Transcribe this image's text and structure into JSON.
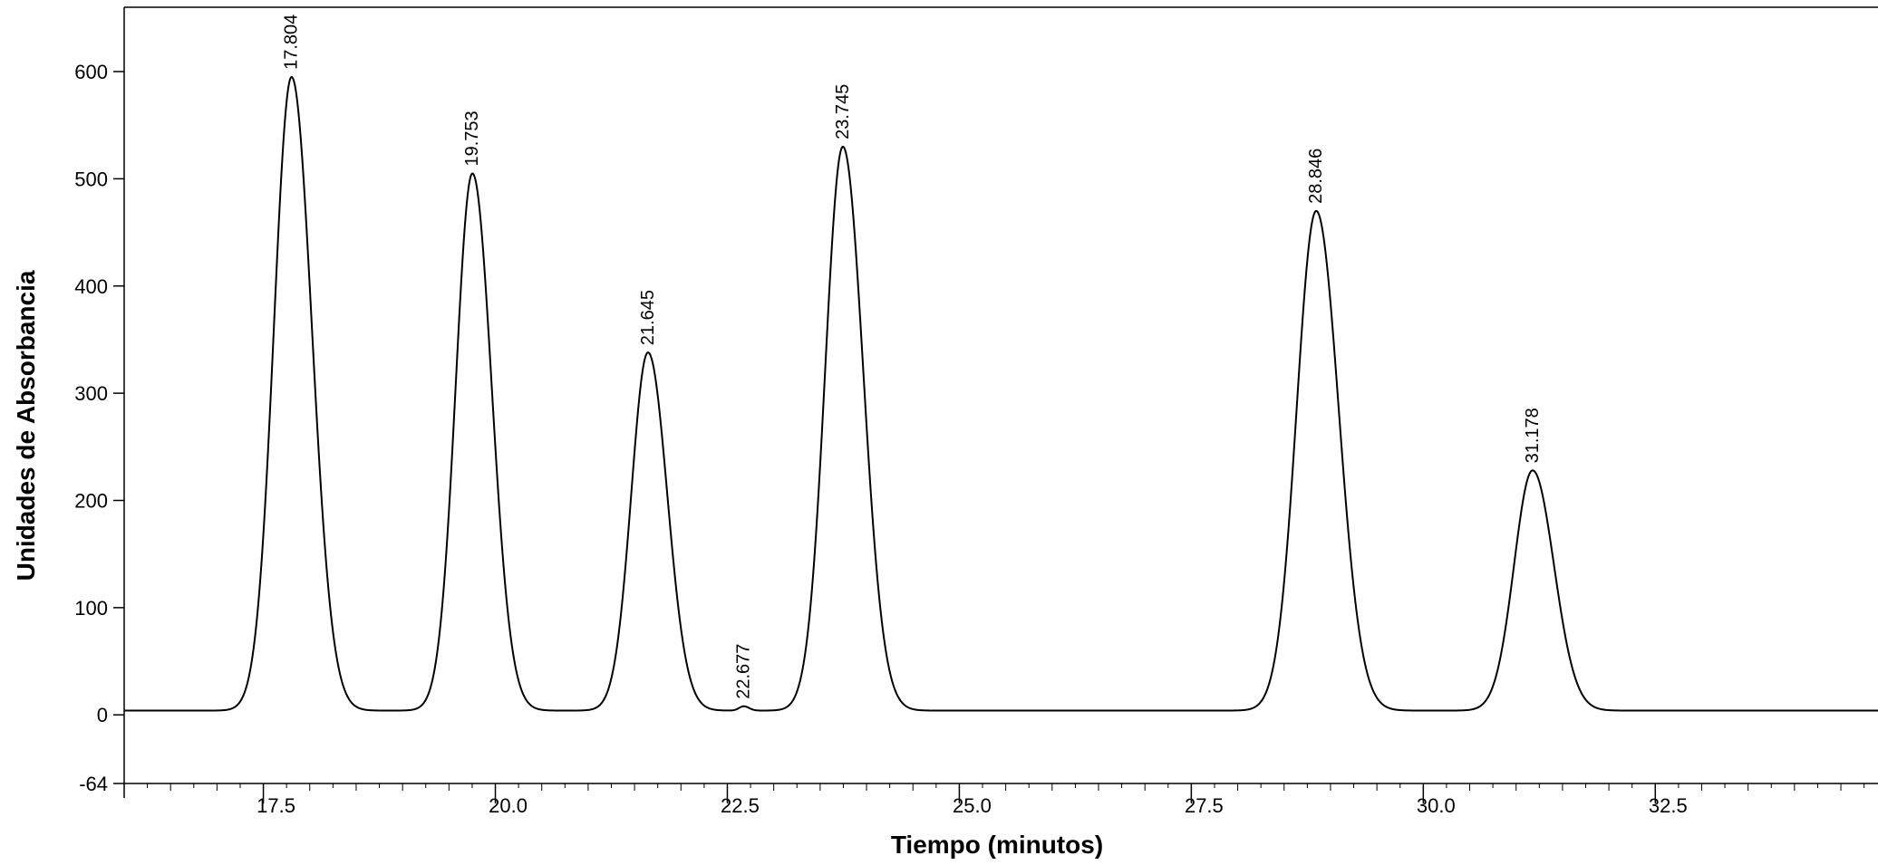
{
  "chart_data": {
    "type": "line",
    "title": "",
    "xlabel": "Tiempo (minutos)",
    "ylabel": "Unidades de Absorbancia",
    "xlim": [
      16.0,
      34.9
    ],
    "ylim": [
      -64,
      660
    ],
    "x_ticks": [
      17.5,
      20.0,
      22.5,
      25.0,
      27.5,
      30.0,
      32.5
    ],
    "x_tick_labels": [
      "17.5",
      "20.0",
      "22.5",
      "25.0",
      "27.5",
      "30.0",
      "32.5"
    ],
    "y_ticks": [
      600,
      500,
      400,
      300,
      200,
      100,
      0,
      -64
    ],
    "y_tick_labels": [
      "600",
      "500",
      "400",
      "300",
      "200",
      "100",
      "0",
      "-64"
    ],
    "grid": false,
    "legend": "none",
    "line_color": "#000000",
    "baseline": 4,
    "peaks": [
      {
        "label": "17.804",
        "x": 17.804,
        "y": 595,
        "width": 0.19
      },
      {
        "label": "19.753",
        "x": 19.753,
        "y": 505,
        "width": 0.18
      },
      {
        "label": "21.645",
        "x": 21.645,
        "y": 338,
        "width": 0.18
      },
      {
        "label": "22.677",
        "x": 22.677,
        "y": 8,
        "width": 0.05
      },
      {
        "label": "23.745",
        "x": 23.745,
        "y": 530,
        "width": 0.19
      },
      {
        "label": "28.846",
        "x": 28.846,
        "y": 470,
        "width": 0.21
      },
      {
        "label": "31.178",
        "x": 31.178,
        "y": 228,
        "width": 0.2
      }
    ]
  }
}
